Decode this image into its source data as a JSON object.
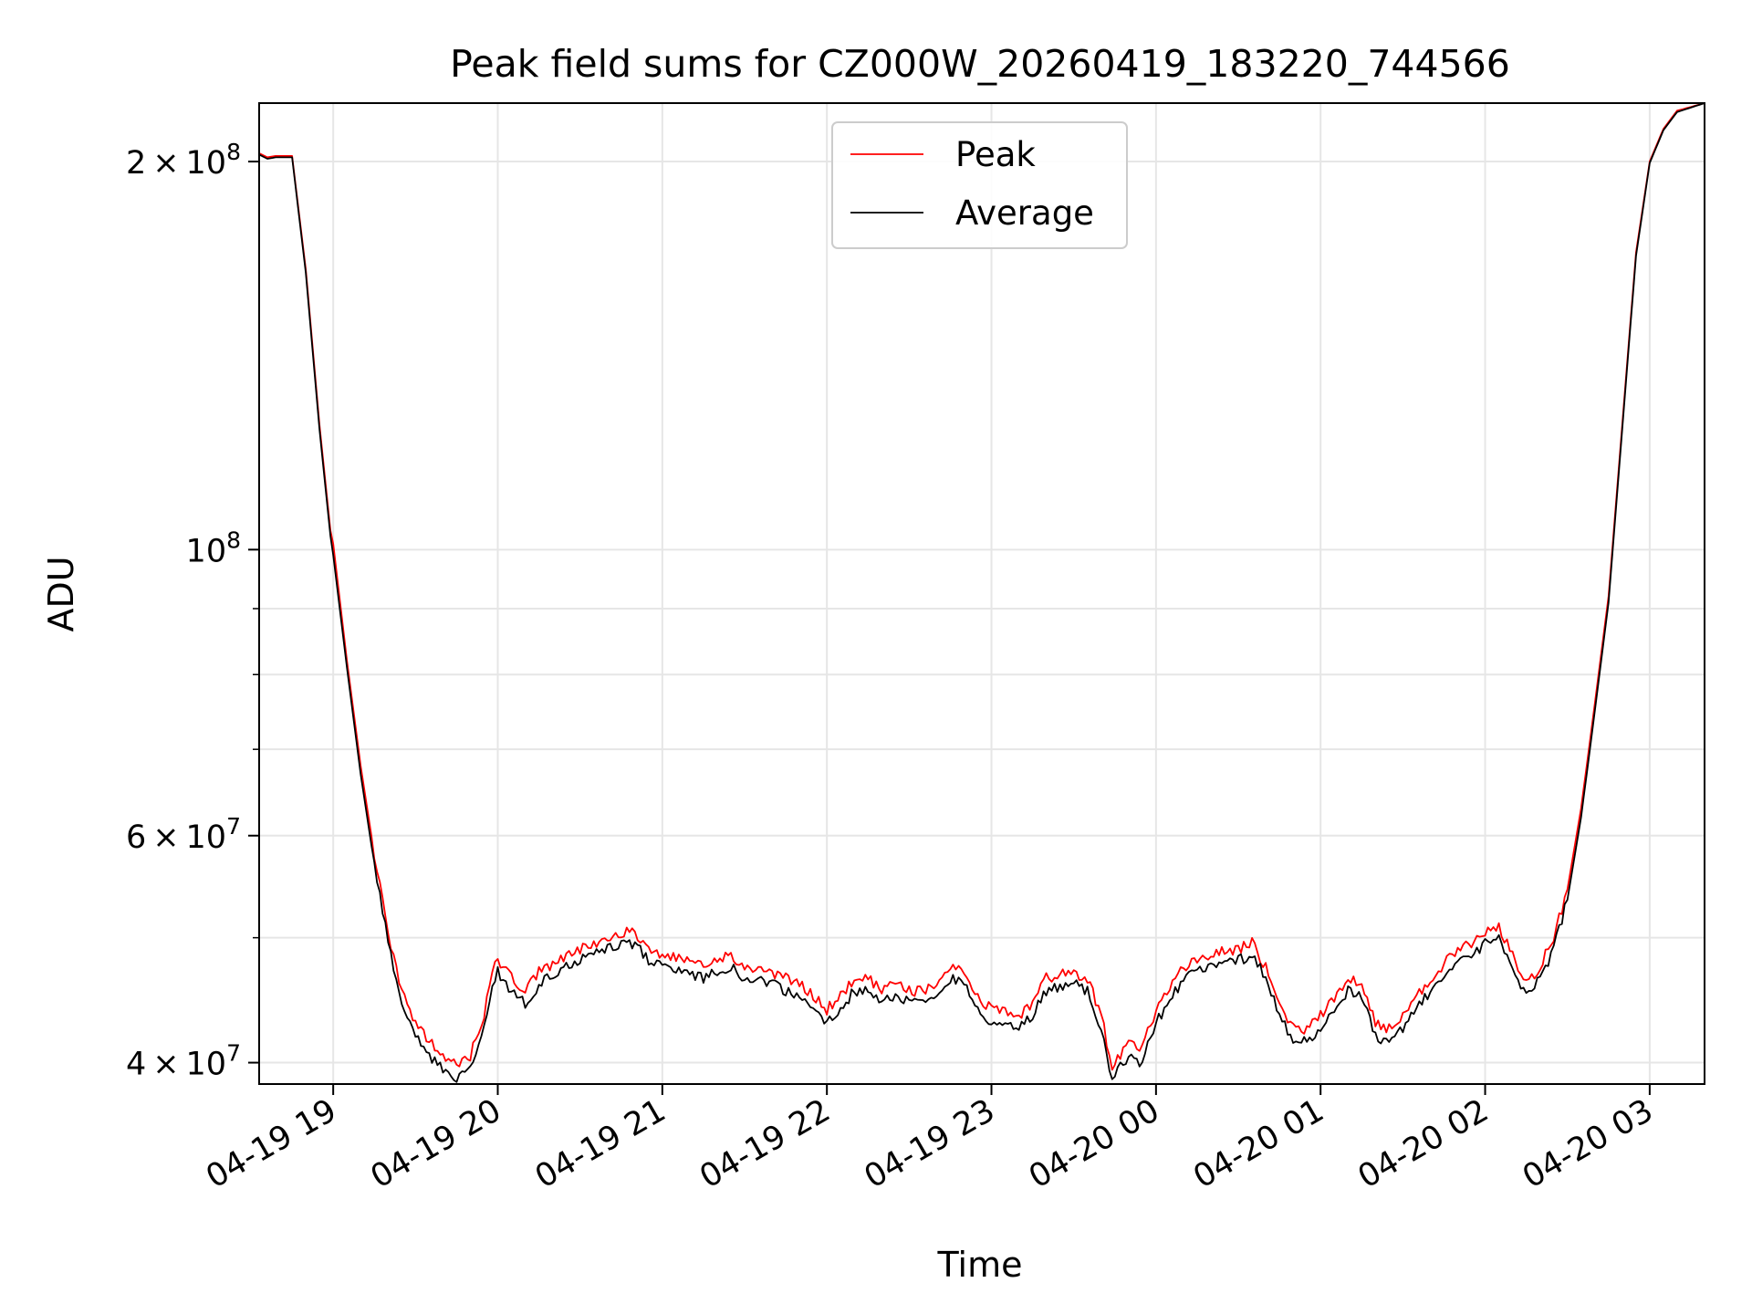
{
  "chart_data": {
    "type": "line",
    "title": "Peak field sums for CZ000W_20260419_183220_744566",
    "xlabel": "Time",
    "ylabel": "ADU",
    "yscale": "log",
    "xlim": [
      "2026-04-19 18:33",
      "2026-04-20 03:20"
    ],
    "ylim": [
      38500000,
      222000000
    ],
    "grid": true,
    "legend_position": "upper center",
    "x_ticks": [
      "04-19 19",
      "04-19 20",
      "04-19 21",
      "04-19 22",
      "04-19 23",
      "04-20 00",
      "04-20 01",
      "04-20 02",
      "04-20 03"
    ],
    "x_tick_times": [
      "2026-04-19 19:00",
      "2026-04-19 20:00",
      "2026-04-19 21:00",
      "2026-04-19 22:00",
      "2026-04-19 23:00",
      "2026-04-20 00:00",
      "2026-04-20 01:00",
      "2026-04-20 02:00",
      "2026-04-20 03:00"
    ],
    "y_major_ticks": [
      {
        "value": 40000000,
        "mantissa": "4",
        "exponent": "7"
      },
      {
        "value": 60000000,
        "mantissa": "6",
        "exponent": "7"
      },
      {
        "value": 100000000,
        "mantissa": "",
        "exponent": "8"
      },
      {
        "value": 200000000,
        "mantissa": "2",
        "exponent": "8"
      }
    ],
    "y_minor_ticks": [
      50000000,
      70000000,
      80000000,
      90000000
    ],
    "tick_base": "10",
    "times_sign": "×",
    "series": [
      {
        "name": "Peak",
        "color": "#ff0000",
        "points": [
          [
            "2026-04-19 18:33",
            203000000
          ],
          [
            "2026-04-19 18:36",
            201500000
          ],
          [
            "2026-04-19 18:39",
            202000000
          ],
          [
            "2026-04-19 18:45",
            202000000
          ],
          [
            "2026-04-19 18:50",
            165000000
          ],
          [
            "2026-04-19 18:55",
            125000000
          ],
          [
            "2026-04-19 18:59",
            103500000
          ],
          [
            "2026-04-19 19:00",
            101000000
          ],
          [
            "2026-04-19 19:05",
            82000000
          ],
          [
            "2026-04-19 19:10",
            68000000
          ],
          [
            "2026-04-19 19:15",
            58000000
          ],
          [
            "2026-04-19 19:20",
            50500000
          ],
          [
            "2026-04-19 19:25",
            45500000
          ],
          [
            "2026-04-19 19:30",
            43000000
          ],
          [
            "2026-04-19 19:35",
            41500000
          ],
          [
            "2026-04-19 19:40",
            40500000
          ],
          [
            "2026-04-19 19:45",
            40000000
          ],
          [
            "2026-04-19 19:50",
            40500000
          ],
          [
            "2026-04-19 19:55",
            43500000
          ],
          [
            "2026-04-19 19:58",
            47000000
          ],
          [
            "2026-04-19 20:00",
            48000000
          ],
          [
            "2026-04-19 20:05",
            46500000
          ],
          [
            "2026-04-19 20:10",
            45500000
          ],
          [
            "2026-04-19 20:15",
            47000000
          ],
          [
            "2026-04-19 20:25",
            48500000
          ],
          [
            "2026-04-19 20:35",
            49500000
          ],
          [
            "2026-04-19 20:45",
            50500000
          ],
          [
            "2026-04-19 20:50",
            50500000
          ],
          [
            "2026-04-19 20:55",
            49000000
          ],
          [
            "2026-04-19 21:00",
            48500000
          ],
          [
            "2026-04-19 21:10",
            48000000
          ],
          [
            "2026-04-19 21:15",
            47500000
          ],
          [
            "2026-04-19 21:25",
            48500000
          ],
          [
            "2026-04-19 21:30",
            47500000
          ],
          [
            "2026-04-19 21:40",
            47000000
          ],
          [
            "2026-04-19 21:50",
            46000000
          ],
          [
            "2026-04-19 21:55",
            45000000
          ],
          [
            "2026-04-19 22:00",
            44000000
          ],
          [
            "2026-04-19 22:05",
            45000000
          ],
          [
            "2026-04-19 22:10",
            46500000
          ],
          [
            "2026-04-19 22:15",
            46500000
          ],
          [
            "2026-04-19 22:20",
            45500000
          ],
          [
            "2026-04-19 22:25",
            46000000
          ],
          [
            "2026-04-19 22:30",
            45500000
          ],
          [
            "2026-04-19 22:35",
            45500000
          ],
          [
            "2026-04-19 22:40",
            46000000
          ],
          [
            "2026-04-19 22:45",
            47500000
          ],
          [
            "2026-04-19 22:50",
            47000000
          ],
          [
            "2026-04-19 22:55",
            45000000
          ],
          [
            "2026-04-19 23:00",
            44000000
          ],
          [
            "2026-04-19 23:10",
            43500000
          ],
          [
            "2026-04-19 23:15",
            44500000
          ],
          [
            "2026-04-19 23:20",
            46500000
          ],
          [
            "2026-04-19 23:30",
            47000000
          ],
          [
            "2026-04-19 23:35",
            46500000
          ],
          [
            "2026-04-19 23:40",
            43500000
          ],
          [
            "2026-04-19 23:44",
            39700000
          ],
          [
            "2026-04-19 23:50",
            41500000
          ],
          [
            "2026-04-19 23:55",
            41000000
          ],
          [
            "2026-04-20 00:00",
            44000000
          ],
          [
            "2026-04-20 00:10",
            47500000
          ],
          [
            "2026-04-20 00:20",
            48500000
          ],
          [
            "2026-04-20 00:30",
            49000000
          ],
          [
            "2026-04-20 00:35",
            49500000
          ],
          [
            "2026-04-20 00:40",
            47500000
          ],
          [
            "2026-04-20 00:45",
            44500000
          ],
          [
            "2026-04-20 00:50",
            42500000
          ],
          [
            "2026-04-20 00:55",
            42500000
          ],
          [
            "2026-04-20 01:00",
            43500000
          ],
          [
            "2026-04-20 01:05",
            45000000
          ],
          [
            "2026-04-20 01:10",
            46500000
          ],
          [
            "2026-04-20 01:15",
            46000000
          ],
          [
            "2026-04-20 01:20",
            43000000
          ],
          [
            "2026-04-20 01:25",
            42500000
          ],
          [
            "2026-04-20 01:30",
            43500000
          ],
          [
            "2026-04-20 01:40",
            46500000
          ],
          [
            "2026-04-20 01:50",
            49000000
          ],
          [
            "2026-04-20 01:55",
            49500000
          ],
          [
            "2026-04-20 02:00",
            50500000
          ],
          [
            "2026-04-20 02:05",
            51000000
          ],
          [
            "2026-04-20 02:10",
            48500000
          ],
          [
            "2026-04-20 02:15",
            46000000
          ],
          [
            "2026-04-20 02:20",
            47500000
          ],
          [
            "2026-04-20 02:25",
            50000000
          ],
          [
            "2026-04-20 02:30",
            54500000
          ],
          [
            "2026-04-20 02:35",
            63000000
          ],
          [
            "2026-04-20 02:40",
            76000000
          ],
          [
            "2026-04-20 02:45",
            92000000
          ],
          [
            "2026-04-20 02:50",
            125000000
          ],
          [
            "2026-04-20 02:55",
            170000000
          ],
          [
            "2026-04-20 03:00",
            200000000
          ],
          [
            "2026-04-20 03:05",
            212000000
          ],
          [
            "2026-04-20 03:10",
            219000000
          ],
          [
            "2026-04-20 03:20",
            222000000
          ]
        ]
      },
      {
        "name": "Average",
        "color": "#000000",
        "points": [
          [
            "2026-04-19 18:33",
            202500000
          ],
          [
            "2026-04-19 18:36",
            201000000
          ],
          [
            "2026-04-19 18:39",
            201500000
          ],
          [
            "2026-04-19 18:45",
            201500000
          ],
          [
            "2026-04-19 18:50",
            164000000
          ],
          [
            "2026-04-19 18:55",
            124000000
          ],
          [
            "2026-04-19 18:59",
            102500000
          ],
          [
            "2026-04-19 19:00",
            99000000
          ],
          [
            "2026-04-19 19:05",
            81000000
          ],
          [
            "2026-04-19 19:10",
            67000000
          ],
          [
            "2026-04-19 19:15",
            57000000
          ],
          [
            "2026-04-19 19:20",
            49500000
          ],
          [
            "2026-04-19 19:25",
            44500000
          ],
          [
            "2026-04-19 19:30",
            42000000
          ],
          [
            "2026-04-19 19:35",
            40500000
          ],
          [
            "2026-04-19 19:40",
            39500000
          ],
          [
            "2026-04-19 19:45",
            39000000
          ],
          [
            "2026-04-19 19:50",
            39500000
          ],
          [
            "2026-04-19 19:55",
            42500000
          ],
          [
            "2026-04-19 19:58",
            46000000
          ],
          [
            "2026-04-19 20:00",
            47000000
          ],
          [
            "2026-04-19 20:05",
            45500000
          ],
          [
            "2026-04-19 20:10",
            44500000
          ],
          [
            "2026-04-19 20:15",
            46000000
          ],
          [
            "2026-04-19 20:25",
            47500000
          ],
          [
            "2026-04-19 20:35",
            48500000
          ],
          [
            "2026-04-19 20:45",
            49500000
          ],
          [
            "2026-04-19 20:50",
            49500000
          ],
          [
            "2026-04-19 20:55",
            48000000
          ],
          [
            "2026-04-19 21:00",
            47500000
          ],
          [
            "2026-04-19 21:10",
            47000000
          ],
          [
            "2026-04-19 21:15",
            46500000
          ],
          [
            "2026-04-19 21:25",
            47500000
          ],
          [
            "2026-04-19 21:30",
            46500000
          ],
          [
            "2026-04-19 21:40",
            46000000
          ],
          [
            "2026-04-19 21:50",
            45000000
          ],
          [
            "2026-04-19 21:55",
            44000000
          ],
          [
            "2026-04-19 22:00",
            43000000
          ],
          [
            "2026-04-19 22:05",
            44000000
          ],
          [
            "2026-04-19 22:10",
            45500000
          ],
          [
            "2026-04-19 22:15",
            45500000
          ],
          [
            "2026-04-19 22:20",
            44500000
          ],
          [
            "2026-04-19 22:25",
            45000000
          ],
          [
            "2026-04-19 22:30",
            44500000
          ],
          [
            "2026-04-19 22:35",
            44500000
          ],
          [
            "2026-04-19 22:40",
            45000000
          ],
          [
            "2026-04-19 22:45",
            46500000
          ],
          [
            "2026-04-19 22:50",
            46000000
          ],
          [
            "2026-04-19 22:55",
            44000000
          ],
          [
            "2026-04-19 23:00",
            43000000
          ],
          [
            "2026-04-19 23:10",
            42500000
          ],
          [
            "2026-04-19 23:15",
            43500000
          ],
          [
            "2026-04-19 23:20",
            45500000
          ],
          [
            "2026-04-19 23:30",
            46000000
          ],
          [
            "2026-04-19 23:35",
            45500000
          ],
          [
            "2026-04-19 23:40",
            42500000
          ],
          [
            "2026-04-19 23:44",
            38800000
          ],
          [
            "2026-04-19 23:50",
            40500000
          ],
          [
            "2026-04-19 23:55",
            40000000
          ],
          [
            "2026-04-20 00:00",
            43000000
          ],
          [
            "2026-04-20 00:10",
            46500000
          ],
          [
            "2026-04-20 00:20",
            47500000
          ],
          [
            "2026-04-20 00:30",
            48000000
          ],
          [
            "2026-04-20 00:35",
            48500000
          ],
          [
            "2026-04-20 00:40",
            46500000
          ],
          [
            "2026-04-20 00:45",
            43500000
          ],
          [
            "2026-04-20 00:50",
            41500000
          ],
          [
            "2026-04-20 00:55",
            41500000
          ],
          [
            "2026-04-20 01:00",
            42500000
          ],
          [
            "2026-04-20 01:05",
            44000000
          ],
          [
            "2026-04-20 01:10",
            45500000
          ],
          [
            "2026-04-20 01:15",
            45000000
          ],
          [
            "2026-04-20 01:20",
            42000000
          ],
          [
            "2026-04-20 01:25",
            41500000
          ],
          [
            "2026-04-20 01:30",
            42500000
          ],
          [
            "2026-04-20 01:40",
            45500000
          ],
          [
            "2026-04-20 01:50",
            48000000
          ],
          [
            "2026-04-20 01:55",
            48500000
          ],
          [
            "2026-04-20 02:00",
            49500000
          ],
          [
            "2026-04-20 02:05",
            50000000
          ],
          [
            "2026-04-20 02:10",
            47500000
          ],
          [
            "2026-04-20 02:15",
            45000000
          ],
          [
            "2026-04-20 02:20",
            46500000
          ],
          [
            "2026-04-20 02:25",
            49000000
          ],
          [
            "2026-04-20 02:30",
            53500000
          ],
          [
            "2026-04-20 02:35",
            62000000
          ],
          [
            "2026-04-20 02:40",
            75000000
          ],
          [
            "2026-04-20 02:45",
            91000000
          ],
          [
            "2026-04-20 02:50",
            124000000
          ],
          [
            "2026-04-20 02:55",
            169000000
          ],
          [
            "2026-04-20 03:00",
            199500000
          ],
          [
            "2026-04-20 03:05",
            211500000
          ],
          [
            "2026-04-20 03:10",
            218500000
          ],
          [
            "2026-04-20 03:20",
            222000000
          ]
        ]
      }
    ]
  }
}
